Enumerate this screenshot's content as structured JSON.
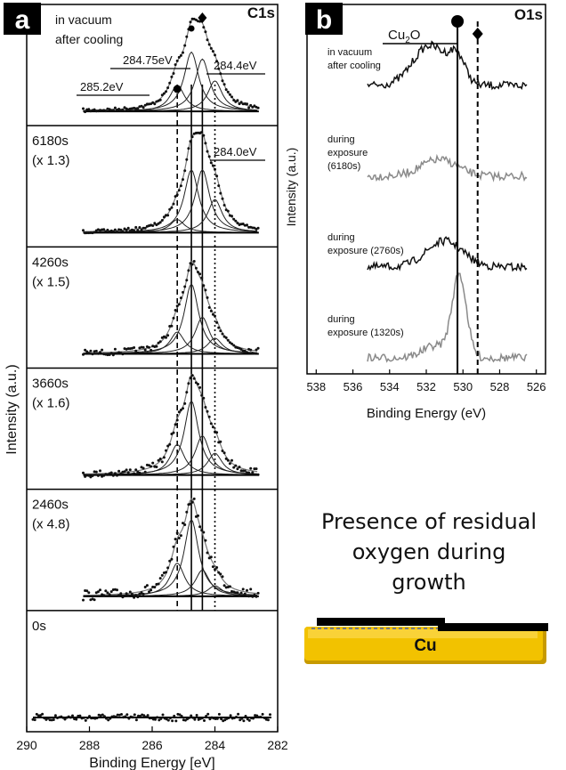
{
  "panel_a_letter": "a",
  "panel_b_letter": "b",
  "caption_lines": [
    "Presence of residual",
    "oxygen during",
    "growth"
  ],
  "substrate_label": "Cu",
  "colors": {
    "black_trace": "#111111",
    "gray_trace": "#8a8a8a",
    "cu_gold": "#f2c200",
    "cu_gold_dark": "#c79a00",
    "dashed_blue": "#3050d0"
  },
  "chart_data": [
    {
      "type": "line",
      "title": "C1s",
      "xlabel": "Binding Energy [eV]",
      "ylabel": "Intensity (a.u.)",
      "xlim": [
        290,
        282
      ],
      "xticks": [
        290,
        288,
        286,
        284,
        282
      ],
      "reference_lines": [
        {
          "x": 285.2,
          "style": "dashed"
        },
        {
          "x": 284.75,
          "style": "solid"
        },
        {
          "x": 284.4,
          "style": "solid"
        },
        {
          "x": 284.0,
          "style": "dotted"
        }
      ],
      "peak_labels": [
        {
          "text": "285.2eV",
          "x": 285.2,
          "marker": "circle"
        },
        {
          "text": "284.75eV",
          "x": 284.75,
          "marker": "pentagon"
        },
        {
          "text": "284.4eV",
          "x": 284.4,
          "marker": "diamond"
        },
        {
          "text": "284.0eV",
          "x": 284.0
        }
      ],
      "series": [
        {
          "label_lines": [
            "in vacuum",
            "after cooling"
          ],
          "components": [
            {
              "center": 285.2,
              "amp": 0.3
            },
            {
              "center": 284.75,
              "amp": 0.68
            },
            {
              "center": 284.4,
              "amp": 0.6
            },
            {
              "center": 284.0,
              "amp": 0.35
            }
          ],
          "noise": 0.02
        },
        {
          "label_lines": [
            "6180s",
            "(x 1.3)"
          ],
          "components": [
            {
              "center": 285.2,
              "amp": 0.15
            },
            {
              "center": 284.75,
              "amp": 0.72
            },
            {
              "center": 284.4,
              "amp": 0.72
            },
            {
              "center": 284.0,
              "amp": 0.38
            }
          ],
          "noise": 0.02
        },
        {
          "label_lines": [
            "4260s",
            "(x 1.5)"
          ],
          "components": [
            {
              "center": 285.2,
              "amp": 0.25
            },
            {
              "center": 284.75,
              "amp": 0.8
            },
            {
              "center": 284.4,
              "amp": 0.42
            },
            {
              "center": 284.0,
              "amp": 0.18
            }
          ],
          "noise": 0.035
        },
        {
          "label_lines": [
            "3660s",
            "(x 1.6)"
          ],
          "components": [
            {
              "center": 285.2,
              "amp": 0.35
            },
            {
              "center": 284.75,
              "amp": 0.85
            },
            {
              "center": 284.4,
              "amp": 0.45
            },
            {
              "center": 284.0,
              "amp": 0.25
            }
          ],
          "noise": 0.04
        },
        {
          "label_lines": [
            "2460s",
            "(x 4.8)"
          ],
          "components": [
            {
              "center": 285.2,
              "amp": 0.38
            },
            {
              "center": 284.75,
              "amp": 0.88
            },
            {
              "center": 284.4,
              "amp": 0.3
            },
            {
              "center": 284.0,
              "amp": 0.12
            }
          ],
          "noise": 0.06
        },
        {
          "label_lines": [
            "0s"
          ],
          "components": [],
          "noise": 0.04
        }
      ]
    },
    {
      "type": "line",
      "title": "O1s",
      "xlabel": "Binding Energy (eV)",
      "ylabel": "Intensity (a.u.)",
      "xlim": [
        538.5,
        525.5
      ],
      "xticks": [
        538,
        536,
        534,
        532,
        530,
        528,
        526
      ],
      "annotation": {
        "text_main": "Cu",
        "text_sub": "2",
        "text_tail": "O"
      },
      "reference_lines": [
        {
          "x": 530.3,
          "style": "solid",
          "marker": "circle"
        },
        {
          "x": 529.2,
          "style": "dashed",
          "marker": "diamond"
        }
      ],
      "series": [
        {
          "label_lines": [
            "in vacuum",
            "after cooling"
          ],
          "color": "black",
          "components": [
            {
              "center": 531.8,
              "amp": 0.75,
              "width": 1.3
            },
            {
              "center": 530.3,
              "amp": 0.45,
              "width": 0.6
            }
          ]
        },
        {
          "label_lines": [
            "during",
            "exposure",
            "(6180s)"
          ],
          "color": "gray",
          "components": [
            {
              "center": 531.3,
              "amp": 0.55,
              "width": 1.4
            }
          ]
        },
        {
          "label_lines": [
            "during",
            "exposure (2760s)"
          ],
          "color": "black",
          "components": [
            {
              "center": 531.0,
              "amp": 0.65,
              "width": 1.4
            }
          ]
        },
        {
          "label_lines": [
            "during",
            "exposure (1320s)"
          ],
          "color": "gray",
          "components": [
            {
              "center": 530.2,
              "amp": 1.35,
              "width": 0.55
            },
            {
              "center": 531.5,
              "amp": 0.2,
              "width": 1.0
            }
          ]
        }
      ]
    }
  ]
}
